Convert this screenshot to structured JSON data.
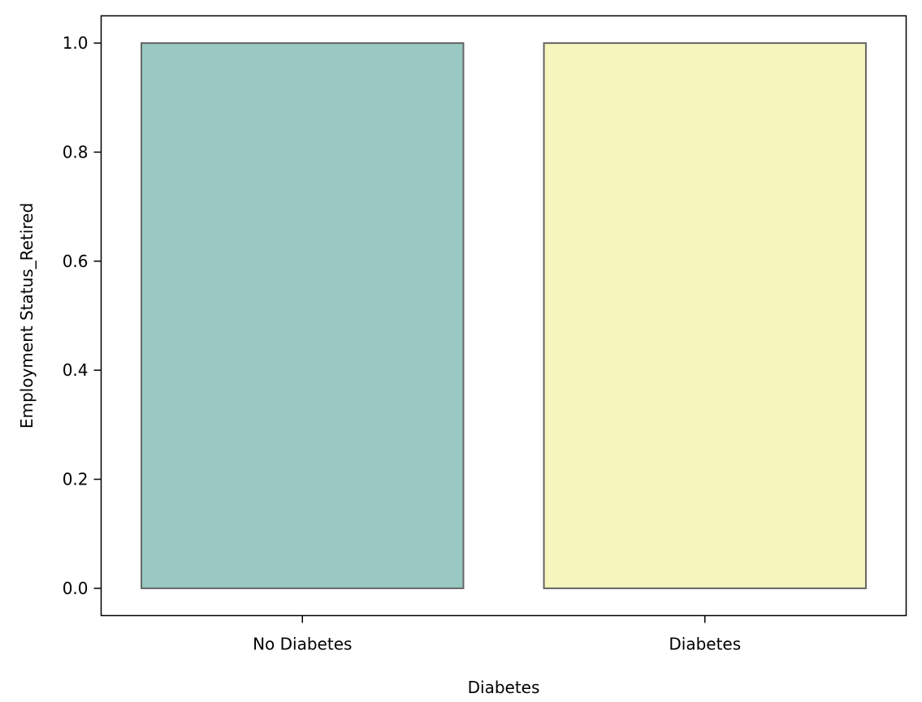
{
  "chart_data": {
    "type": "bar",
    "title": "",
    "categories": [
      "No Diabetes",
      "Diabetes"
    ],
    "values": [
      1.0,
      1.0
    ],
    "bar_colors": [
      "#99c9c2",
      "#f6f5bd"
    ],
    "bar_edge_color": "#666666",
    "xlabel": "Diabetes",
    "ylabel": "Employment Status_Retired",
    "ylim": [
      -0.05,
      1.05
    ],
    "yticks": [
      0.0,
      0.2,
      0.4,
      0.6,
      0.8,
      1.0
    ],
    "ytick_labels": [
      "0.0",
      "0.2",
      "0.4",
      "0.6",
      "0.8",
      "1.0"
    ],
    "grid": false,
    "legend": "none"
  }
}
